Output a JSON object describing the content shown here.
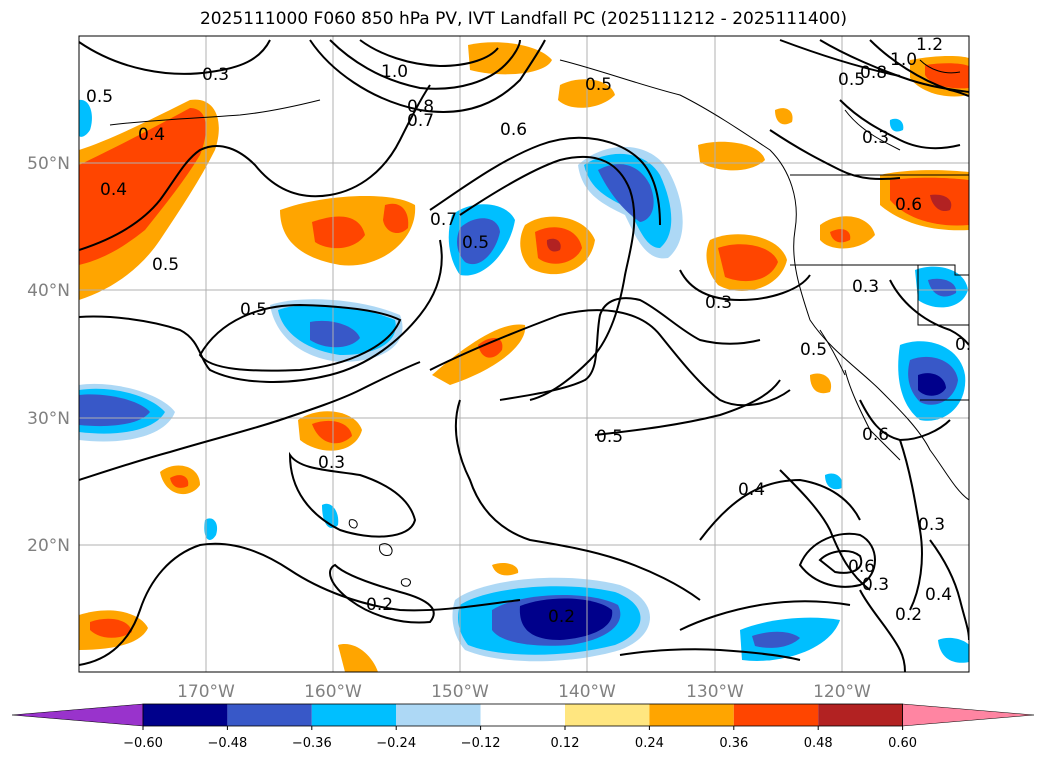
{
  "title": "2025111000 F060 850 hPa PV, IVT Landfall PC (2025111212 - 2025111400)",
  "map": {
    "lat_labels": [
      "50°N",
      "40°N",
      "30°N",
      "20°N"
    ],
    "lon_labels": [
      "170°W",
      "160°W",
      "150°W",
      "140°W",
      "130°W",
      "120°W"
    ],
    "grid": true,
    "contour_labels": [
      "0.3",
      "1.0",
      "0.8",
      "0.7",
      "0.5",
      "0.6",
      "1.2",
      "1.0",
      "0.8",
      "0.5",
      "0.3",
      "0.5",
      "0.4",
      "0.4",
      "0.5",
      "0.7",
      "0.5",
      "0.5",
      "0.3",
      "0.3",
      "0.5",
      "0.6",
      "0.5",
      "0.5",
      "0.4",
      "0.3",
      "0.2",
      "0.2",
      "0.6",
      "0.3",
      "0.2",
      "0.4",
      "0.3",
      "0.6"
    ],
    "colors": {
      "coast": "#000000",
      "grid": "#b0b0b0",
      "tick_label": "#808080"
    }
  },
  "colorbar": {
    "ticks": [
      "−0.60",
      "−0.48",
      "−0.36",
      "−0.24",
      "−0.12",
      "0.12",
      "0.24",
      "0.36",
      "0.48",
      "0.60"
    ],
    "colors": [
      "#9933cc",
      "#00008b",
      "#3858c8",
      "#00bfff",
      "#add8f5",
      "#ffffff",
      "#ffe680",
      "#ffa500",
      "#ff4500",
      "#b22222",
      "#ff85a2"
    ],
    "extend": "both"
  }
}
